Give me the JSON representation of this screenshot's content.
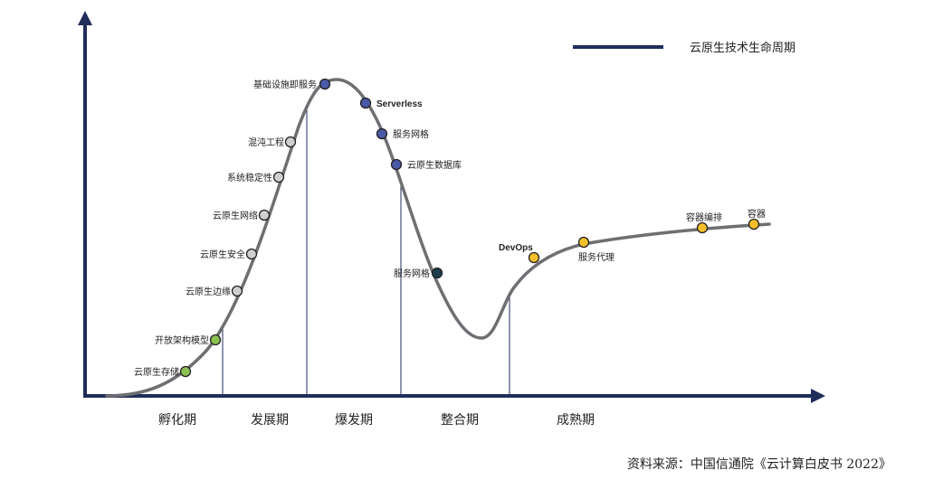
{
  "chart_data": {
    "type": "line",
    "title": "",
    "legend": {
      "label": "云原生技术生命周期",
      "placement": "top-right"
    },
    "phases": [
      "孵化期",
      "发展期",
      "爆发期",
      "整合期",
      "成熟期"
    ],
    "points": [
      {
        "label": "云原生存储",
        "phase": "孵化期",
        "status": "green"
      },
      {
        "label": "开放架构模型",
        "phase": "孵化期",
        "status": "green"
      },
      {
        "label": "云原生边缘",
        "phase": "发展期",
        "status": "gray"
      },
      {
        "label": "云原生安全",
        "phase": "发展期",
        "status": "gray"
      },
      {
        "label": "云原生网络",
        "phase": "发展期",
        "status": "gray"
      },
      {
        "label": "系统稳定性",
        "phase": "发展期",
        "status": "gray"
      },
      {
        "label": "混沌工程",
        "phase": "发展期",
        "status": "gray"
      },
      {
        "label": "基础设施即服务",
        "phase": "爆发期",
        "status": "blue"
      },
      {
        "label": "Serverless",
        "phase": "爆发期",
        "status": "blue"
      },
      {
        "label": "服务网格",
        "phase": "爆发期",
        "status": "blue"
      },
      {
        "label": "云原生数据库",
        "phase": "爆发期",
        "status": "blue"
      },
      {
        "label": "服务网格",
        "phase": "整合期",
        "status": "dark"
      },
      {
        "label": "DevOps",
        "phase": "成熟期",
        "status": "yellow"
      },
      {
        "label": "服务代理",
        "phase": "成熟期",
        "status": "yellow"
      },
      {
        "label": "容器编排",
        "phase": "成熟期",
        "status": "yellow"
      },
      {
        "label": "容器",
        "phase": "成熟期",
        "status": "yellow"
      }
    ],
    "colors": {
      "axis": "#1f2d5a",
      "curve": "#6e6e73",
      "legend_line": "#1f2d5a",
      "green": "#8cc152",
      "gray": "#cfcfcf",
      "blue": "#4a5aa8",
      "dark": "#1e3d4f",
      "yellow": "#f5c02a"
    },
    "grid": false
  },
  "source": "资料来源：中国信通院《云计算白皮书 2022》"
}
